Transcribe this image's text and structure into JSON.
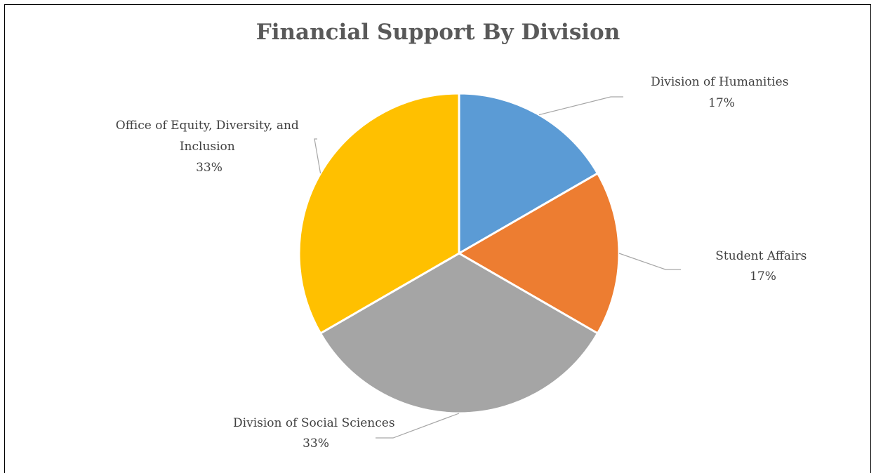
{
  "chart_data": {
    "type": "pie",
    "title": "Financial Support By Division",
    "categories": [
      "Division of Humanities",
      "Student Affairs",
      "Division of Social Sciences",
      "Office of Equity, Diversity, and Inclusion"
    ],
    "values": [
      1,
      1,
      2,
      2
    ],
    "percent_labels": [
      "17%",
      "17%",
      "33%",
      "33%"
    ],
    "colors": [
      "#5B9BD5",
      "#ED7D31",
      "#A5A5A5",
      "#FFC000"
    ],
    "start_angle": "12 o'clock",
    "direction": "clockwise",
    "legend": "none",
    "data_labels": "outside with leader lines"
  },
  "labels": {
    "humanities": {
      "lines": [
        "Division of Humanities"
      ],
      "pct": "17%"
    },
    "student_affairs": {
      "lines": [
        "Student Affairs"
      ],
      "pct": "17%"
    },
    "social_sciences": {
      "lines": [
        "Division of Social Sciences"
      ],
      "pct": "33%"
    },
    "equity": {
      "lines": [
        "Office of Equity, Diversity, and",
        "Inclusion"
      ],
      "pct": "33%"
    }
  }
}
